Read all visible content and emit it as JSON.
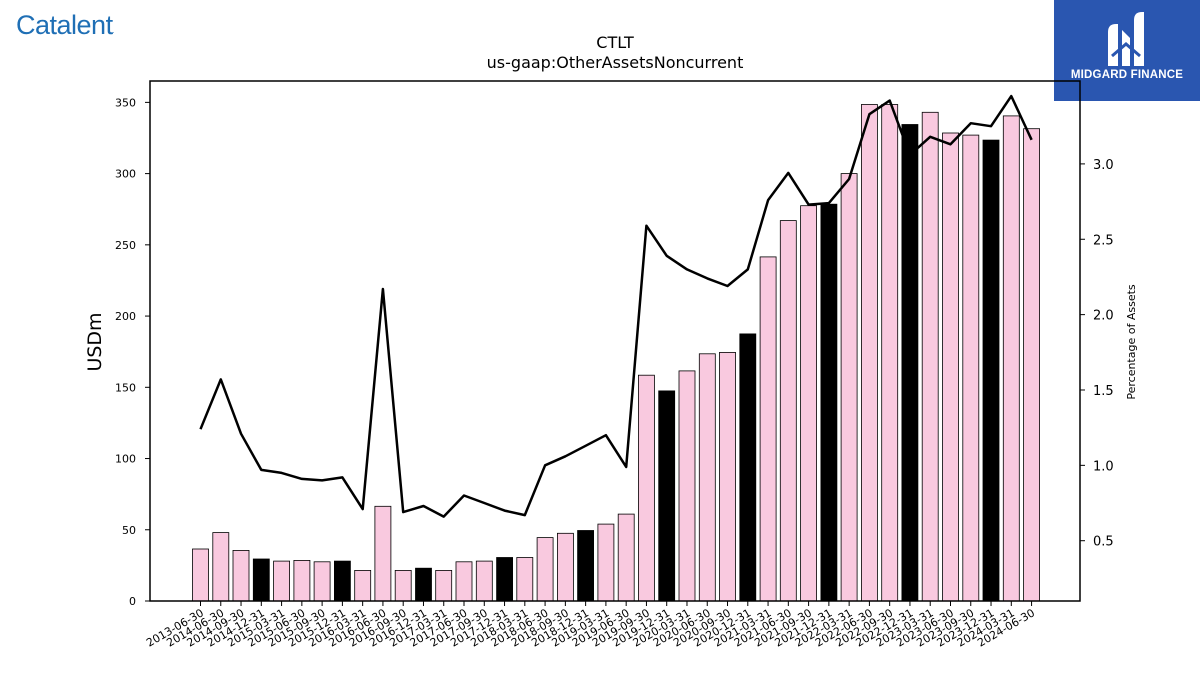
{
  "branding": {
    "left_logo_text": "Catalent",
    "left_logo_mark": ".",
    "right_logo_text": "MIDGARD FINANCE"
  },
  "colors": {
    "bar_quarter": "#f9c9df",
    "bar_year_end": "#000000",
    "line": "#000000",
    "logo_left": "#1f6fb5",
    "logo_right_bg": "#2a56b0"
  },
  "chart_data": {
    "type": "bar",
    "title": "CTLT",
    "subtitle": "us-gaap:OtherAssetsNoncurrent",
    "ylabel": "USDm",
    "y2label": "Percentage of Assets",
    "ylim": [
      0,
      365
    ],
    "y2lim": [
      0.1,
      3.55
    ],
    "yticks": [
      0,
      50,
      100,
      150,
      200,
      250,
      300,
      350
    ],
    "y2ticks": [
      0.5,
      1.0,
      1.5,
      2.0,
      2.5,
      3.0
    ],
    "y2ticklabels": [
      "0.5",
      "1.0",
      "1.5",
      "2.0",
      "2.5",
      "3.0"
    ],
    "grid": false,
    "categories": [
      "2013-06-30",
      "2014-06-30",
      "2014-09-30",
      "2014-12-31",
      "2015-03-31",
      "2015-06-30",
      "2015-09-30",
      "2015-12-31",
      "2016-03-31",
      "2016-06-30",
      "2016-09-30",
      "2016-12-31",
      "2017-03-31",
      "2017-06-30",
      "2017-09-30",
      "2017-12-31",
      "2018-03-31",
      "2018-06-30",
      "2018-09-30",
      "2018-12-31",
      "2019-03-31",
      "2019-06-30",
      "2019-09-30",
      "2019-12-31",
      "2020-03-31",
      "2020-06-30",
      "2020-09-30",
      "2020-12-31",
      "2021-03-31",
      "2021-06-30",
      "2021-09-30",
      "2021-12-31",
      "2022-03-31",
      "2022-06-30",
      "2022-09-30",
      "2022-12-31",
      "2023-03-31",
      "2023-06-30",
      "2023-09-30",
      "2023-12-31",
      "2024-03-31",
      "2024-06-30"
    ],
    "series": [
      {
        "kind": "bar",
        "values": [
          36.5,
          48,
          35.5,
          29.5,
          28,
          28.5,
          27.5,
          28,
          21.5,
          66.5,
          21.5,
          23,
          21.5,
          27.5,
          28,
          30.5,
          30.5,
          44.5,
          47.5,
          49.5,
          54,
          61,
          158.5,
          147.5,
          161.5,
          173.5,
          174.5,
          187.5,
          241.5,
          267,
          277.5,
          278.5,
          300,
          348.5,
          348.5,
          334.5,
          343,
          328.5,
          327,
          323.5,
          340.5,
          331.5
        ],
        "year_end": [
          false,
          false,
          false,
          true,
          false,
          false,
          false,
          true,
          false,
          false,
          false,
          true,
          false,
          false,
          false,
          true,
          false,
          false,
          false,
          true,
          false,
          false,
          false,
          true,
          false,
          false,
          false,
          true,
          false,
          false,
          false,
          true,
          false,
          false,
          false,
          true,
          false,
          false,
          false,
          true,
          false,
          false
        ]
      },
      {
        "kind": "line",
        "axis": "right",
        "values": [
          1.24,
          1.57,
          1.21,
          0.97,
          0.95,
          0.91,
          0.9,
          0.92,
          0.71,
          2.17,
          0.69,
          0.73,
          0.66,
          0.8,
          0.75,
          0.7,
          0.67,
          1.0,
          1.06,
          1.13,
          1.2,
          0.99,
          2.59,
          2.39,
          2.3,
          2.24,
          2.19,
          2.3,
          2.76,
          2.94,
          2.73,
          2.74,
          2.9,
          3.33,
          3.42,
          3.06,
          3.18,
          3.13,
          3.27,
          3.25,
          3.45,
          3.16
        ]
      }
    ]
  }
}
